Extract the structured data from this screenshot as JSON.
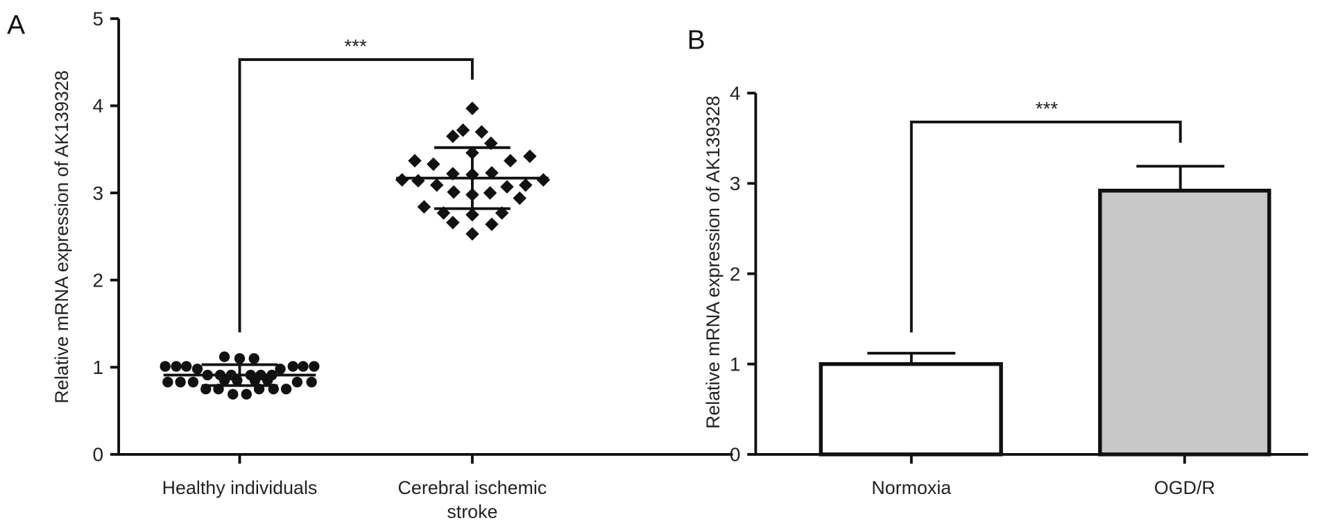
{
  "chart_data": [
    {
      "panel": "A",
      "type": "scatter",
      "ylabel": "Relative mRNA expression of AK139328",
      "ylim": [
        0,
        5
      ],
      "yticks": [
        "0",
        "1",
        "2",
        "3",
        "4",
        "5"
      ],
      "categories": [
        "Healthy individuals",
        "Cerebral ischemic stroke"
      ],
      "series": [
        {
          "name": "Healthy individuals",
          "marker": "circle",
          "mean": 0.91,
          "sd_upper": 1.03,
          "sd_lower": 0.79,
          "values": [
            1.01,
            1.01,
            1.01,
            1.01,
            1.01,
            1.01,
            1.12,
            1.1,
            1.1,
            0.98,
            0.98,
            0.91,
            0.91,
            0.91,
            0.91,
            0.91,
            0.91,
            0.83,
            0.83,
            0.83,
            0.83,
            0.83,
            0.85,
            0.85,
            0.85,
            0.85,
            0.75,
            0.75,
            0.75,
            0.75,
            0.75,
            0.69,
            0.69
          ]
        },
        {
          "name": "Cerebral ischemic stroke",
          "marker": "diamond",
          "mean": 3.17,
          "sd_upper": 3.52,
          "sd_lower": 2.82,
          "values": [
            3.97,
            3.65,
            3.72,
            3.7,
            3.57,
            3.46,
            3.37,
            3.33,
            3.37,
            3.42,
            3.22,
            3.21,
            3.23,
            3.15,
            3.14,
            3.15,
            3.09,
            3.07,
            3.09,
            3.01,
            2.98,
            3.0,
            2.94,
            2.84,
            2.77,
            2.75,
            2.77,
            2.66,
            2.64,
            2.53
          ]
        }
      ],
      "significance": {
        "label": "***",
        "level": 4.53
      }
    },
    {
      "panel": "B",
      "type": "bar",
      "ylabel": "Relative mRNA expression of AK139328",
      "ylim": [
        0,
        4
      ],
      "yticks": [
        "0",
        "1",
        "2",
        "3",
        "4"
      ],
      "categories": [
        "Normoxia",
        "OGD/R"
      ],
      "values": [
        1.0,
        2.92
      ],
      "error_upper": [
        1.12,
        3.19
      ],
      "colors": [
        "#ffffff",
        "#c8c8c8"
      ],
      "significance": {
        "label": "***",
        "level": 3.68
      }
    }
  ]
}
